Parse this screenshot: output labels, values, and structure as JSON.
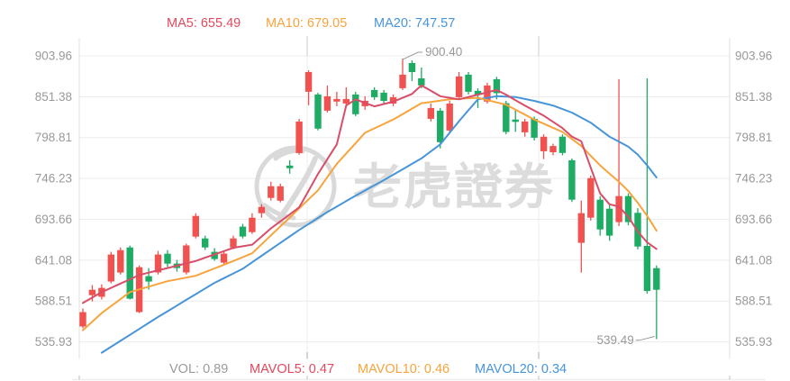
{
  "header": {
    "items": [
      {
        "id": "ma5",
        "text": "MA5: 655.49",
        "color": "#e0485f"
      },
      {
        "id": "ma10",
        "text": "MA10: 679.05",
        "color": "#f7a43d"
      },
      {
        "id": "ma20",
        "text": "MA20: 747.57",
        "color": "#4795d8"
      }
    ]
  },
  "footer": {
    "items": [
      {
        "id": "vol",
        "text": "VOL: 0.89",
        "color": "#9b9b9b"
      },
      {
        "id": "mavol5",
        "text": "MAVOL5: 0.47",
        "color": "#e0485f"
      },
      {
        "id": "mavol10",
        "text": "MAVOL10: 0.46",
        "color": "#f7a43d"
      },
      {
        "id": "mavol20",
        "text": "MAVOL20: 0.34",
        "color": "#4795d8"
      }
    ]
  },
  "watermark": {
    "text": "老虎證券"
  },
  "axis": {
    "labels": [
      "903.96",
      "851.38",
      "798.81",
      "746.23",
      "693.66",
      "641.08",
      "588.51",
      "535.93"
    ]
  },
  "annotations": {
    "high": {
      "text": "900.40",
      "price": 900.4,
      "candle_index": 34
    },
    "low": {
      "text": "539.49",
      "price": 539.49,
      "candle_index": 61
    }
  },
  "colors": {
    "candle_up": "#1eab63",
    "candle_down": "#f0534f",
    "ma5": "#d94d68",
    "ma10": "#f7a43d",
    "ma20": "#4795d8",
    "axis_text": "#999999",
    "grid": "#ececec",
    "border": "#e2e2e2",
    "tick": "#c6c6c6",
    "annotation": "#999999",
    "watermark": "#d9d9d9"
  },
  "chart_data": {
    "type": "candlestick",
    "title": "",
    "xlabel": "",
    "ylabel": "",
    "grid": "horizontal",
    "price_axis": {
      "ticks": [
        903.96,
        851.38,
        798.81,
        746.23,
        693.66,
        641.08,
        588.51,
        535.93
      ],
      "ylim": [
        535.93,
        903.96
      ]
    },
    "indicators": {
      "MA5": 655.49,
      "MA10": 679.05,
      "MA20": 747.57,
      "VOL": 0.89,
      "MAVOL5": 0.47,
      "MAVOL10": 0.46,
      "MAVOL20": 0.34
    },
    "high_label": 900.4,
    "low_label": 539.49,
    "candles_ohlc": [
      [
        574.3,
        578.9,
        553.5,
        555.8
      ],
      [
        603.0,
        609.0,
        588.0,
        596.0
      ],
      [
        605.5,
        610.0,
        590.5,
        594.0
      ],
      [
        648.3,
        651.8,
        611.3,
        613.6
      ],
      [
        654.0,
        657.5,
        622.6,
        625.2
      ],
      [
        591.6,
        659.8,
        590.5,
        657.5
      ],
      [
        632.0,
        634.3,
        573.0,
        574.3
      ],
      [
        613.6,
        631.0,
        603.2,
        620.5
      ],
      [
        648.3,
        653.0,
        622.6,
        625.2
      ],
      [
        636.7,
        654.0,
        632.0,
        649.4
      ],
      [
        630.9,
        641.4,
        626.3,
        636.7
      ],
      [
        660.0,
        662.2,
        622.6,
        625.2
      ],
      [
        698.0,
        701.5,
        669.1,
        671.4
      ],
      [
        657.5,
        672.6,
        654.1,
        669.1
      ],
      [
        642.5,
        656.4,
        640.2,
        651.8
      ],
      [
        649.5,
        653.0,
        635.6,
        637.9
      ],
      [
        669.1,
        672.6,
        655.2,
        657.5
      ],
      [
        671.4,
        687.7,
        669.1,
        684.2
      ],
      [
        695.7,
        701.5,
        674.9,
        677.2
      ],
      [
        709.6,
        713.1,
        695.7,
        701.5
      ],
      [
        736.2,
        742.0,
        717.7,
        721.2
      ],
      [
        736.2,
        739.7,
        715.4,
        717.7
      ],
      [
        759.3,
        769.7,
        752.4,
        762.8
      ],
      [
        819.5,
        823.0,
        776.7,
        779.0
      ],
      [
        883.1,
        885.4,
        840.3,
        857.7
      ],
      [
        810.3,
        856.6,
        808.0,
        854.2
      ],
      [
        851.9,
        865.8,
        831.1,
        833.4
      ],
      [
        848.4,
        857.7,
        839.2,
        845.0
      ],
      [
        848.4,
        863.5,
        839.2,
        842.6
      ],
      [
        828.8,
        857.7,
        826.4,
        854.2
      ],
      [
        846.1,
        851.9,
        834.6,
        839.2
      ],
      [
        850.7,
        863.5,
        847.3,
        860.0
      ],
      [
        846.1,
        860.0,
        842.6,
        856.6
      ],
      [
        850.7,
        854.2,
        839.2,
        842.6
      ],
      [
        879.7,
        900.4,
        860.0,
        862.3
      ],
      [
        883.1,
        898.2,
        871.6,
        894.7
      ],
      [
        865.8,
        888.9,
        862.3,
        875.0
      ],
      [
        836.9,
        842.6,
        819.5,
        823.0
      ],
      [
        792.9,
        836.9,
        784.8,
        833.4
      ],
      [
        842.6,
        846.1,
        804.5,
        807.9
      ],
      [
        877.4,
        883.1,
        848.4,
        850.7
      ],
      [
        857.7,
        883.1,
        854.2,
        879.7
      ],
      [
        854.2,
        862.3,
        836.9,
        858.9
      ],
      [
        865.8,
        869.3,
        842.6,
        845.0
      ],
      [
        856.0,
        877.0,
        848.0,
        874.0
      ],
      [
        806.0,
        846.0,
        803.0,
        843.0
      ],
      [
        819.0,
        834.0,
        806.0,
        822.0
      ],
      [
        819.5,
        823.0,
        800.0,
        805.6
      ],
      [
        798.7,
        826.0,
        795.0,
        823.0
      ],
      [
        799.9,
        803.0,
        771.0,
        781.3
      ],
      [
        788.0,
        791.0,
        776.0,
        780.0
      ],
      [
        779.0,
        803.0,
        776.0,
        800.0
      ],
      [
        718.9,
        772.0,
        716.0,
        769.7
      ],
      [
        701.5,
        717.7,
        625.2,
        663.4
      ],
      [
        746.6,
        750.0,
        692.0,
        695.7
      ],
      [
        680.7,
        723.5,
        672.6,
        718.9
      ],
      [
        672.6,
        712.0,
        666.0,
        707.3
      ],
      [
        723.5,
        874.0,
        685.0,
        690.0
      ],
      [
        690.0,
        727.0,
        686.0,
        723.5
      ],
      [
        658.7,
        708.0,
        655.0,
        702.0
      ],
      [
        601.6,
        875.0,
        598.0,
        659.5
      ],
      [
        603.0,
        634.3,
        539.49,
        630.8
      ]
    ],
    "ma5_points": [
      [
        0,
        586
      ],
      [
        2,
        600
      ],
      [
        6,
        622
      ],
      [
        9,
        631
      ],
      [
        12,
        640
      ],
      [
        16,
        657
      ],
      [
        18,
        661
      ],
      [
        20,
        682
      ],
      [
        23,
        709
      ],
      [
        25,
        752
      ],
      [
        27,
        790
      ],
      [
        28,
        840
      ],
      [
        29,
        848
      ],
      [
        31,
        839
      ],
      [
        33,
        845
      ],
      [
        35,
        855
      ],
      [
        36,
        866
      ],
      [
        38,
        852
      ],
      [
        40,
        848
      ],
      [
        42,
        854
      ],
      [
        44,
        860
      ],
      [
        45,
        854
      ],
      [
        47,
        840
      ],
      [
        49,
        827
      ],
      [
        51,
        811
      ],
      [
        52,
        800
      ],
      [
        53,
        794
      ],
      [
        54,
        760
      ],
      [
        55,
        727
      ],
      [
        56,
        713
      ],
      [
        57,
        710
      ],
      [
        58,
        697
      ],
      [
        59,
        678
      ],
      [
        60,
        664
      ],
      [
        61,
        655.49
      ]
    ],
    "ma10_points": [
      [
        0,
        551
      ],
      [
        2,
        573
      ],
      [
        5,
        600
      ],
      [
        9,
        614
      ],
      [
        12,
        621
      ],
      [
        16,
        640
      ],
      [
        18,
        650
      ],
      [
        20,
        673
      ],
      [
        22,
        696
      ],
      [
        25,
        731
      ],
      [
        27,
        765
      ],
      [
        30,
        805
      ],
      [
        33,
        822
      ],
      [
        36,
        843
      ],
      [
        39,
        848
      ],
      [
        42,
        850
      ],
      [
        45,
        841
      ],
      [
        48,
        822
      ],
      [
        51,
        806
      ],
      [
        53,
        788
      ],
      [
        55,
        763
      ],
      [
        57,
        742
      ],
      [
        58,
        730
      ],
      [
        59,
        715
      ],
      [
        60,
        698
      ],
      [
        61,
        679.05
      ]
    ],
    "ma20_points": [
      [
        2,
        522
      ],
      [
        5,
        545
      ],
      [
        8,
        568
      ],
      [
        11,
        590
      ],
      [
        14,
        612
      ],
      [
        17,
        630
      ],
      [
        20,
        655
      ],
      [
        23,
        680
      ],
      [
        26,
        703
      ],
      [
        29,
        724
      ],
      [
        32,
        744
      ],
      [
        34,
        758
      ],
      [
        36,
        772
      ],
      [
        38,
        790
      ],
      [
        40,
        820
      ],
      [
        42,
        848
      ],
      [
        44,
        852
      ],
      [
        46,
        851
      ],
      [
        48,
        846
      ],
      [
        50,
        840
      ],
      [
        52,
        831
      ],
      [
        54,
        818
      ],
      [
        56,
        800
      ],
      [
        58,
        787
      ],
      [
        59,
        777
      ],
      [
        60,
        763
      ],
      [
        61,
        747.57
      ]
    ]
  }
}
